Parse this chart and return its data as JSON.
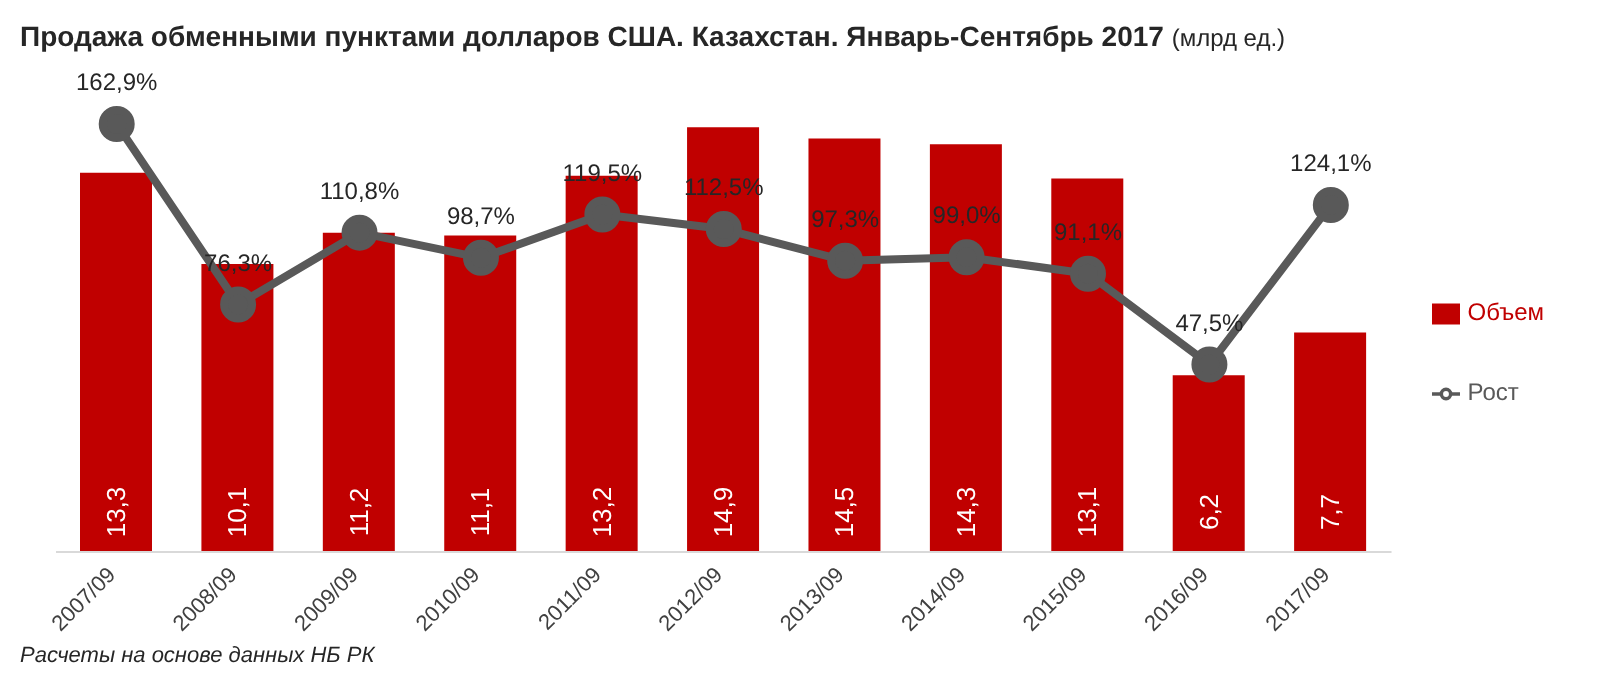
{
  "chart_data": {
    "type": "bar",
    "title": "Продажа обменными пунктами долларов США. Казахстан. Январь-Сентябрь 2017",
    "subtitle": "(млрд ед.)",
    "categories": [
      "2007/09",
      "2008/09",
      "2009/09",
      "2010/09",
      "2011/09",
      "2012/09",
      "2013/09",
      "2014/09",
      "2015/09",
      "2016/09",
      "2017/09"
    ],
    "series": [
      {
        "name": "Объем",
        "color": "#c00000",
        "values": [
          13.3,
          10.1,
          11.2,
          11.1,
          13.2,
          14.9,
          14.5,
          14.3,
          13.1,
          6.2,
          7.7
        ],
        "value_labels": [
          "13,3",
          "10,1",
          "11,2",
          "11,1",
          "13,2",
          "14,9",
          "14,5",
          "14,3",
          "13,1",
          "6,2",
          "7,7"
        ]
      },
      {
        "name": "Рост",
        "type": "line",
        "axis": "y2",
        "color": "#595959",
        "values": [
          162.9,
          76.3,
          110.8,
          98.7,
          119.5,
          112.5,
          97.3,
          99.0,
          91.1,
          47.5,
          124.1
        ],
        "value_labels": [
          "162,9%",
          "76,3%",
          "110,8%",
          "98,7%",
          "119,5%",
          "112,5%",
          "97,3%",
          "99,0%",
          "91,1%",
          "47,5%",
          "124,1%"
        ]
      }
    ],
    "legend": "right",
    "marker": "circle",
    "line_style": "solid",
    "annotations": [
      "Расчеты на основе данных НБ РК"
    ]
  }
}
